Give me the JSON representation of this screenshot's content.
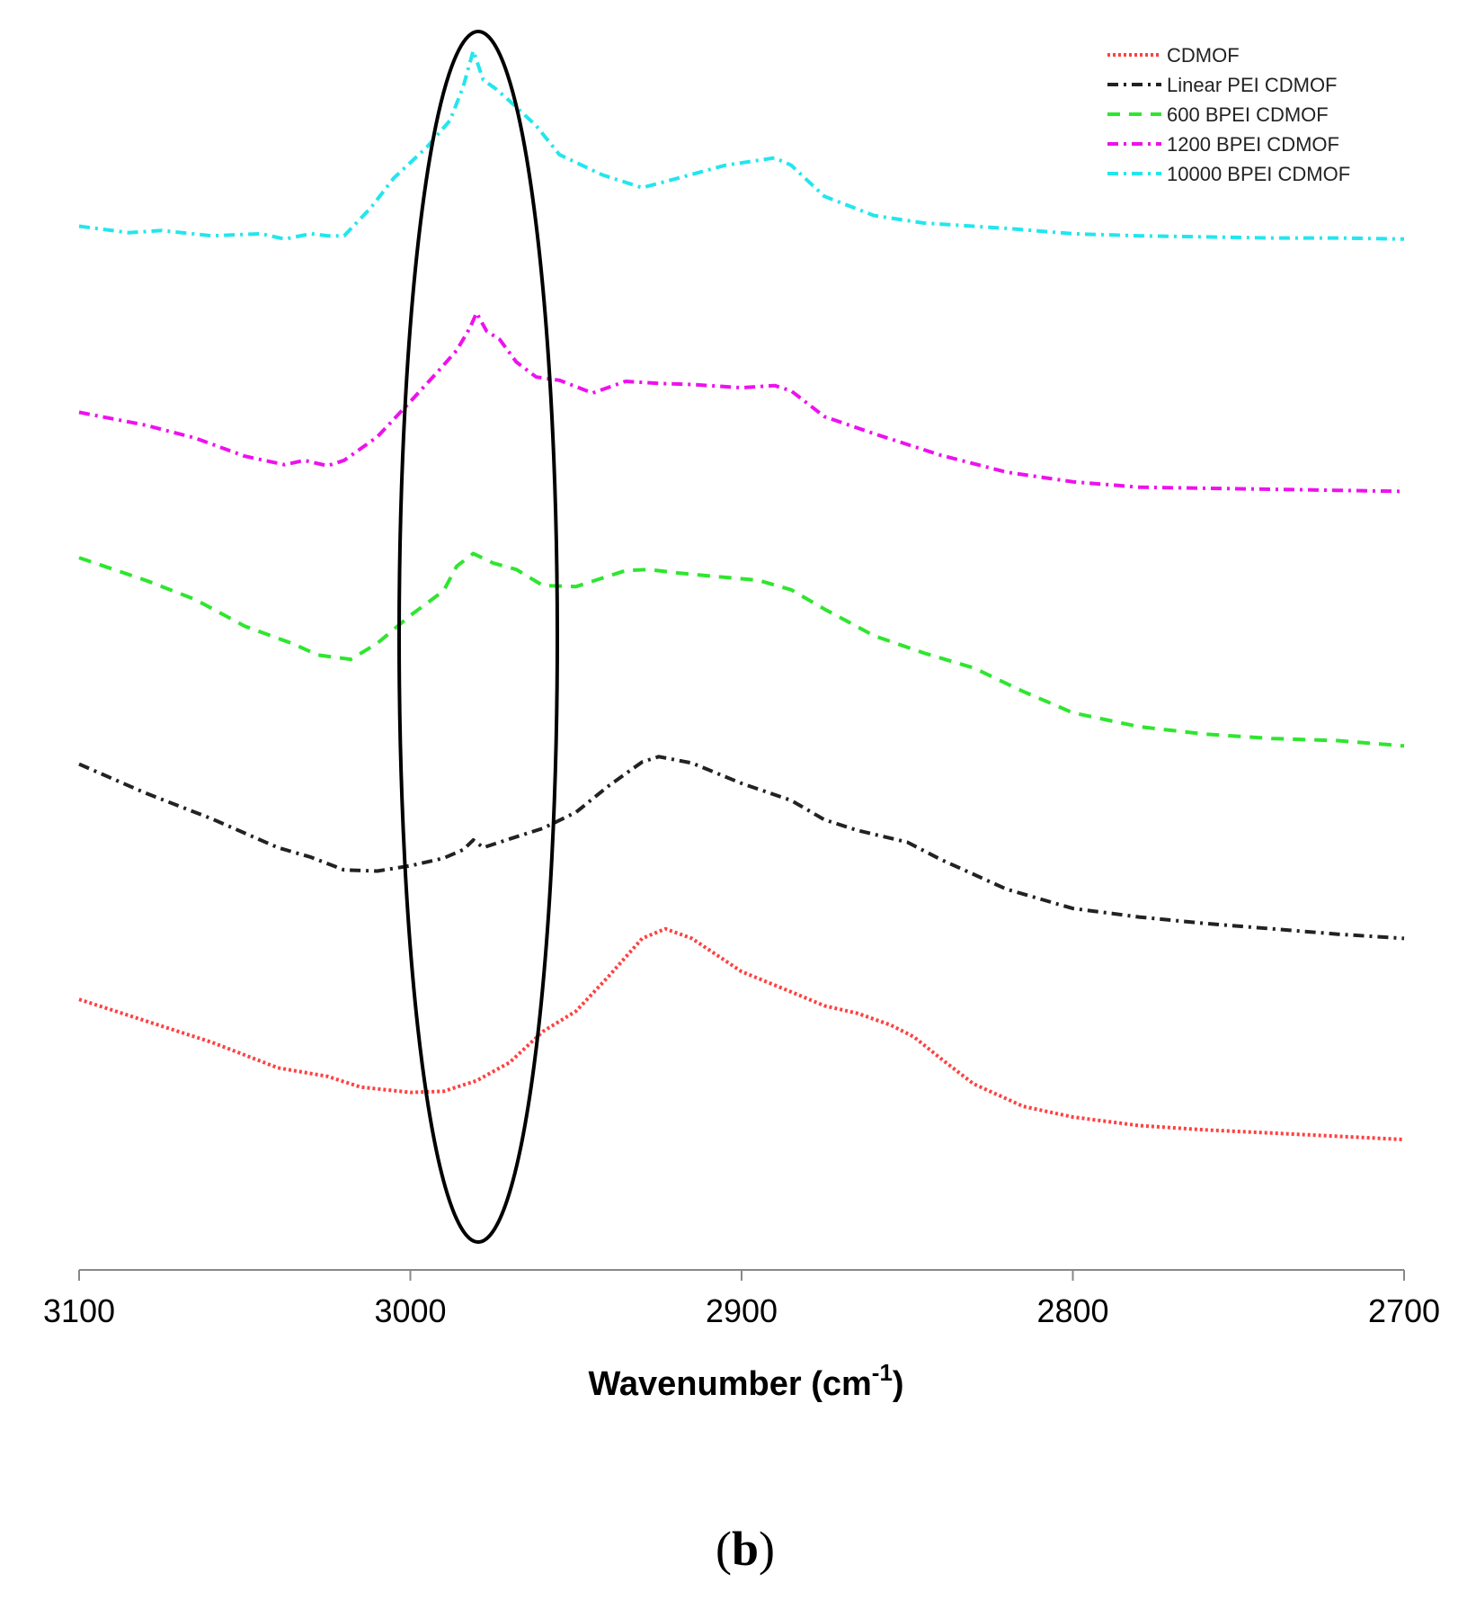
{
  "panel_label": {
    "open": "(",
    "letter": "b",
    "close": ")"
  },
  "chart_data": {
    "type": "line",
    "title": "",
    "xlabel": "Wavenumber (cm",
    "xlabel_sup": "-1",
    "xlabel_close": ")",
    "ylabel": "",
    "xlim": [
      3100,
      2700
    ],
    "x_reversed": true,
    "ylim": [
      0,
      1
    ],
    "y_axis_visible": false,
    "grid": false,
    "legend_position": "top-right",
    "x_ticks": [
      3100,
      3000,
      2900,
      2800,
      2700
    ],
    "x_tick_labels": [
      "3100",
      "3000",
      "2900",
      "2800",
      "2700"
    ],
    "annotation": {
      "type": "ellipse",
      "center_x": 2981,
      "note": "highlighted region around 2980 cm-1"
    },
    "series": [
      {
        "name": "CDMOF",
        "color": "#ff4040",
        "style": "dotted",
        "x": [
          3100,
          3080,
          3060,
          3040,
          3025,
          3015,
          3000,
          2990,
          2980,
          2970,
          2960,
          2950,
          2940,
          2930,
          2923,
          2915,
          2900,
          2885,
          2875,
          2865,
          2855,
          2848,
          2840,
          2830,
          2815,
          2800,
          2780,
          2760,
          2740,
          2720,
          2700
        ],
        "y": [
          0.163,
          0.143,
          0.123,
          0.099,
          0.091,
          0.081,
          0.076,
          0.077,
          0.087,
          0.104,
          0.133,
          0.152,
          0.185,
          0.22,
          0.229,
          0.22,
          0.189,
          0.17,
          0.157,
          0.15,
          0.139,
          0.128,
          0.108,
          0.084,
          0.063,
          0.053,
          0.045,
          0.041,
          0.038,
          0.035,
          0.032
        ]
      },
      {
        "name": "Linear PEI CDMOF",
        "color": "#222222",
        "style": "dashdot",
        "x": [
          3100,
          3080,
          3060,
          3040,
          3030,
          3020,
          3010,
          3000,
          2990,
          2984,
          2981,
          2978,
          2970,
          2960,
          2950,
          2940,
          2930,
          2925,
          2915,
          2900,
          2885,
          2875,
          2865,
          2850,
          2840,
          2820,
          2800,
          2780,
          2760,
          2740,
          2720,
          2700
        ],
        "y": [
          0.383,
          0.356,
          0.332,
          0.305,
          0.296,
          0.284,
          0.283,
          0.288,
          0.295,
          0.303,
          0.312,
          0.305,
          0.313,
          0.323,
          0.338,
          0.363,
          0.385,
          0.39,
          0.384,
          0.365,
          0.349,
          0.331,
          0.321,
          0.31,
          0.294,
          0.266,
          0.248,
          0.24,
          0.234,
          0.229,
          0.224,
          0.22
        ]
      },
      {
        "name": "600 BPEI CDMOF",
        "color": "#2ee62e",
        "style": "dashed",
        "x": [
          3100,
          3080,
          3065,
          3050,
          3035,
          3028,
          3018,
          3010,
          3000,
          2990,
          2986,
          2981,
          2975,
          2968,
          2960,
          2950,
          2943,
          2935,
          2928,
          2920,
          2910,
          2895,
          2885,
          2875,
          2860,
          2845,
          2830,
          2815,
          2800,
          2780,
          2760,
          2740,
          2720,
          2700
        ],
        "y": [
          0.576,
          0.555,
          0.537,
          0.512,
          0.495,
          0.485,
          0.481,
          0.496,
          0.522,
          0.545,
          0.568,
          0.58,
          0.571,
          0.565,
          0.55,
          0.549,
          0.556,
          0.564,
          0.565,
          0.562,
          0.559,
          0.555,
          0.546,
          0.528,
          0.503,
          0.487,
          0.473,
          0.451,
          0.431,
          0.418,
          0.411,
          0.407,
          0.405,
          0.4
        ]
      },
      {
        "name": "1200 BPEI CDMOF",
        "color": "#ee11ee",
        "style": "dashdot",
        "x": [
          3100,
          3080,
          3065,
          3050,
          3038,
          3032,
          3025,
          3020,
          3010,
          3000,
          2992,
          2986,
          2982,
          2980,
          2977,
          2973,
          2968,
          2962,
          2955,
          2945,
          2935,
          2925,
          2915,
          2900,
          2890,
          2885,
          2875,
          2860,
          2840,
          2820,
          2800,
          2780,
          2760,
          2740,
          2720,
          2700
        ],
        "y": [
          0.712,
          0.7,
          0.688,
          0.671,
          0.663,
          0.667,
          0.662,
          0.667,
          0.689,
          0.722,
          0.749,
          0.77,
          0.791,
          0.805,
          0.788,
          0.78,
          0.759,
          0.745,
          0.742,
          0.73,
          0.741,
          0.739,
          0.738,
          0.735,
          0.737,
          0.732,
          0.708,
          0.692,
          0.672,
          0.656,
          0.647,
          0.642,
          0.641,
          0.64,
          0.639,
          0.638
        ]
      },
      {
        "name": "10000 BPEI CDMOF",
        "color": "#22e6ee",
        "style": "dashdot",
        "x": [
          3100,
          3085,
          3075,
          3060,
          3045,
          3038,
          3030,
          3025,
          3020,
          3012,
          3005,
          2995,
          2988,
          2984,
          2981,
          2978,
          2974,
          2970,
          2962,
          2955,
          2942,
          2930,
          2918,
          2905,
          2890,
          2885,
          2875,
          2860,
          2845,
          2820,
          2800,
          2780,
          2760,
          2740,
          2720,
          2700
        ],
        "y": [
          0.886,
          0.88,
          0.882,
          0.877,
          0.879,
          0.874,
          0.879,
          0.877,
          0.877,
          0.903,
          0.931,
          0.96,
          0.985,
          1.017,
          1.05,
          1.023,
          1.014,
          1.003,
          0.98,
          0.953,
          0.934,
          0.922,
          0.932,
          0.943,
          0.95,
          0.943,
          0.914,
          0.896,
          0.889,
          0.884,
          0.879,
          0.877,
          0.876,
          0.875,
          0.875,
          0.874
        ]
      }
    ]
  }
}
